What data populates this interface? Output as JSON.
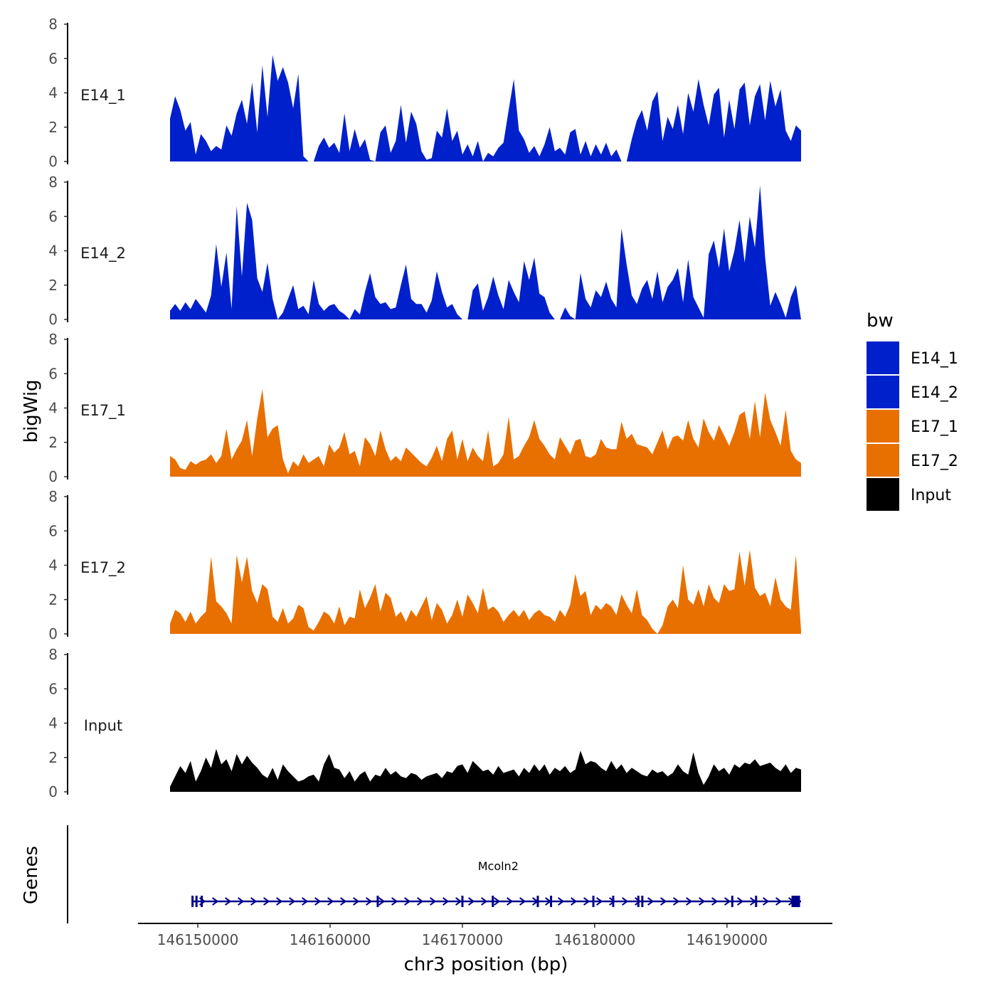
{
  "chart_data": {
    "type": "area",
    "ylabel": "bigWig",
    "xlabel": "chr3 position (bp)",
    "x_ticks": [
      146150000,
      146160000,
      146170000,
      146180000,
      146190000
    ],
    "x_tick_labels": [
      "146150000",
      "146160000",
      "146170000",
      "146180000",
      "146190000"
    ],
    "xlim": [
      146145000,
      146198000
    ],
    "region": [
      146147900,
      146195600
    ],
    "ylim": [
      0,
      8
    ],
    "y_ticks": [
      0,
      2,
      4,
      6,
      8
    ],
    "y_tick_labels": [
      "0",
      "2",
      "4",
      "6",
      "8"
    ],
    "legend": {
      "title": "bw",
      "position": "right",
      "entries": [
        {
          "label": "E14_1",
          "color": "#0020cc"
        },
        {
          "label": "E14_2",
          "color": "#0020cc"
        },
        {
          "label": "E17_1",
          "color": "#e87000"
        },
        {
          "label": "E17_2",
          "color": "#e87000"
        },
        {
          "label": "Input",
          "color": "#000000"
        }
      ]
    },
    "series": [
      {
        "name": "E14_1",
        "color": "#0020cc",
        "approx_max": 6.2,
        "profile": [
          2.5,
          3.8,
          3.0,
          1.8,
          2.3,
          0.4,
          1.6,
          1.2,
          0.6,
          0.9,
          0.7,
          2.1,
          1.5,
          2.8,
          3.6,
          2.2,
          4.6,
          1.7,
          5.6,
          2.6,
          6.2,
          4.7,
          5.5,
          4.6,
          3.1,
          5.1,
          0.3,
          0,
          0,
          0.9,
          1.4,
          0.8,
          1.1,
          0.5,
          2.8,
          0.6,
          1.9,
          0.8,
          1.3,
          0.1,
          0,
          1.7,
          2.1,
          0.5,
          1.2,
          3.3,
          1.1,
          2.9,
          2.2,
          0.6,
          0.1,
          0.2,
          1.8,
          1.4,
          3.1,
          1.2,
          1.8,
          0.4,
          1.0,
          0.3,
          1.2,
          0,
          0.5,
          0.3,
          0.8,
          1.1,
          3.0,
          4.8,
          1.8,
          1.3,
          0.5,
          0.9,
          0.3,
          1.0,
          2.0,
          0.6,
          0.8,
          0.4,
          1.7,
          1.9,
          0.4,
          1.2,
          0.3,
          1.0,
          0.4,
          1.1,
          0.3,
          0.7,
          0,
          0,
          1.3,
          2.4,
          3.0,
          1.8,
          3.5,
          4.1,
          1.2,
          2.6,
          1.9,
          3.3,
          1.6,
          4.0,
          2.9,
          4.8,
          3.3,
          2.1,
          3.9,
          4.3,
          1.4,
          3.6,
          1.9,
          4.2,
          4.6,
          2.1,
          3.8,
          4.5,
          2.4,
          4.7,
          3.2,
          4.2,
          1.8,
          1.2,
          2.1,
          1.8
        ]
      },
      {
        "name": "E14_2",
        "color": "#0020cc",
        "approx_max": 7.8,
        "profile": [
          0.5,
          0.9,
          0.5,
          1.0,
          0.6,
          1.2,
          0.8,
          0.4,
          1.4,
          4.4,
          1.9,
          3.9,
          0.6,
          6.6,
          2.5,
          6.8,
          5.8,
          2.4,
          1.6,
          3.3,
          1.2,
          0,
          0.4,
          1.2,
          2.0,
          0.6,
          0.8,
          0.3,
          2.3,
          0.9,
          0.5,
          0.8,
          0.9,
          0.5,
          0.3,
          0,
          0.6,
          0.3,
          1.6,
          2.7,
          1.3,
          0.9,
          1.0,
          0.6,
          0.7,
          2.0,
          3.2,
          1.2,
          0.9,
          0.9,
          0.4,
          1.1,
          2.8,
          1.6,
          0.7,
          0.9,
          0.3,
          0,
          0,
          1.7,
          2.1,
          0.5,
          1.3,
          2.5,
          1.4,
          0.6,
          2.3,
          1.6,
          1.0,
          3.4,
          2.3,
          3.6,
          1.5,
          1.3,
          0.4,
          0,
          0,
          0.7,
          0.2,
          0,
          2.7,
          1.2,
          0.7,
          1.7,
          1.3,
          2.2,
          1.2,
          0.7,
          5.3,
          3.2,
          1.4,
          0.9,
          1.8,
          2.3,
          1.2,
          2.8,
          1.0,
          1.9,
          2.3,
          3.0,
          1.0,
          3.5,
          1.3,
          0.7,
          0.1,
          3.8,
          4.6,
          3.0,
          5.3,
          2.8,
          4.0,
          5.8,
          3.3,
          6.0,
          4.2,
          7.8,
          3.6,
          0.8,
          1.6,
          0.9,
          0.1,
          1.3,
          2.0,
          0
        ]
      },
      {
        "name": "E17_1",
        "color": "#e87000",
        "approx_max": 5.1,
        "profile": [
          1.2,
          1.0,
          0.5,
          0.4,
          0.9,
          0.7,
          0.9,
          1.0,
          1.3,
          0.8,
          1.2,
          2.8,
          1.0,
          1.6,
          2.1,
          3.3,
          1.2,
          3.4,
          5.1,
          2.3,
          2.8,
          3.0,
          1.0,
          0.2,
          0.9,
          0.6,
          1.3,
          0.8,
          1.0,
          1.2,
          0.6,
          1.9,
          1.4,
          1.7,
          2.6,
          1.3,
          1.5,
          0.6,
          2.3,
          1.9,
          1.2,
          2.7,
          1.6,
          0.9,
          1.2,
          0.9,
          1.7,
          1.4,
          1.1,
          0.8,
          0.6,
          1.1,
          1.8,
          0.9,
          2.2,
          2.7,
          1.0,
          2.2,
          0.9,
          1.7,
          1.2,
          0.9,
          2.7,
          0.6,
          0.8,
          1.3,
          3.5,
          1.0,
          1.2,
          1.8,
          2.3,
          3.3,
          2.2,
          1.8,
          1.3,
          1.0,
          2.3,
          1.8,
          1.3,
          2.1,
          2.2,
          1.2,
          1.1,
          1.3,
          2.2,
          1.7,
          1.6,
          1.6,
          3.2,
          2.2,
          2.5,
          1.9,
          1.8,
          1.7,
          1.3,
          2.0,
          2.7,
          1.6,
          2.3,
          2.4,
          2.1,
          3.3,
          2.2,
          1.7,
          3.4,
          2.6,
          2.1,
          3.0,
          2.4,
          1.8,
          2.6,
          3.6,
          3.8,
          2.2,
          4.4,
          2.3,
          4.9,
          3.3,
          2.6,
          1.8,
          3.9,
          1.5,
          1.0,
          0.8
        ]
      },
      {
        "name": "E17_2",
        "color": "#e87000",
        "approx_max": 4.9,
        "profile": [
          0.6,
          1.4,
          1.2,
          0.7,
          1.3,
          0.6,
          1.0,
          1.3,
          4.5,
          1.9,
          1.6,
          1.2,
          0.6,
          4.6,
          3.0,
          4.5,
          2.5,
          1.8,
          2.9,
          2.6,
          1.0,
          0.7,
          1.5,
          0.6,
          0.9,
          1.7,
          1.5,
          0.4,
          0.2,
          0.7,
          1.3,
          1.1,
          0.6,
          1.6,
          0.5,
          1.0,
          0.9,
          2.6,
          1.5,
          2.1,
          2.9,
          1.3,
          2.4,
          2.1,
          1.0,
          1.3,
          0.7,
          1.4,
          1.0,
          1.6,
          2.2,
          0.8,
          1.8,
          1.4,
          0.6,
          1.1,
          2.0,
          1.0,
          2.3,
          1.8,
          1.2,
          2.7,
          1.4,
          1.6,
          1.3,
          0.7,
          1.1,
          1.4,
          1.0,
          1.4,
          0.8,
          1.2,
          1.4,
          1.1,
          1.0,
          0.7,
          1.4,
          1.0,
          1.7,
          3.5,
          2.2,
          2.5,
          1.1,
          1.7,
          1.4,
          1.8,
          1.6,
          1.1,
          2.3,
          1.7,
          1.2,
          2.6,
          1.1,
          0.8,
          0.3,
          0,
          0.5,
          1.6,
          2.0,
          1.5,
          4.0,
          2.0,
          1.7,
          2.6,
          1.6,
          2.9,
          2.1,
          1.8,
          2.9,
          2.5,
          2.6,
          4.8,
          2.8,
          4.9,
          2.7,
          2.2,
          2.4,
          1.6,
          3.3,
          2.0,
          1.6,
          1.4,
          4.6,
          0.2
        ]
      },
      {
        "name": "Input",
        "color": "#000000",
        "approx_max": 2.5,
        "profile": [
          0.3,
          0.9,
          1.5,
          1.1,
          1.8,
          0.6,
          1.2,
          2.0,
          1.4,
          2.5,
          1.6,
          1.9,
          1.2,
          2.2,
          1.6,
          2.1,
          1.7,
          1.4,
          1.0,
          0.8,
          1.4,
          0.7,
          1.6,
          1.2,
          0.9,
          0.6,
          0.7,
          0.9,
          1.0,
          0.6,
          1.6,
          2.2,
          1.4,
          1.3,
          0.8,
          1.2,
          0.6,
          1.0,
          1.2,
          0.6,
          1.0,
          0.9,
          1.4,
          1.0,
          1.2,
          0.9,
          0.8,
          1.1,
          1.0,
          0.7,
          0.9,
          1.0,
          1.1,
          0.8,
          1.2,
          1.1,
          1.5,
          1.6,
          1.1,
          1.8,
          1.5,
          1.2,
          1.3,
          1.0,
          1.5,
          1.1,
          1.2,
          1.3,
          0.9,
          1.4,
          1.1,
          1.6,
          1.2,
          1.6,
          1.0,
          1.4,
          1.2,
          1.5,
          1.1,
          1.3,
          2.4,
          1.6,
          1.8,
          1.7,
          1.4,
          1.2,
          1.8,
          1.3,
          1.6,
          1.1,
          1.4,
          1.2,
          1.0,
          0.9,
          1.3,
          1.1,
          1.2,
          0.9,
          1.1,
          1.6,
          1.2,
          1.0,
          2.3,
          1.1,
          0.4,
          0.9,
          1.6,
          1.2,
          1.4,
          1.0,
          1.6,
          1.4,
          1.7,
          1.6,
          1.9,
          1.5,
          1.6,
          1.7,
          1.4,
          1.2,
          1.6,
          1.1,
          1.4,
          1.3
        ]
      }
    ],
    "genes": {
      "title": "Genes",
      "features": [
        {
          "name": "Mcoln2",
          "start": 146149600,
          "end": 146195600,
          "strand": "+",
          "color": "#00008b",
          "exons": [
            146149600,
            146149900,
            146150300,
            146163600,
            146170000,
            146172300,
            146175700,
            146176700,
            146179900,
            146181400,
            146183300,
            146183600,
            146190400,
            146192200,
            146195200
          ]
        }
      ]
    }
  }
}
